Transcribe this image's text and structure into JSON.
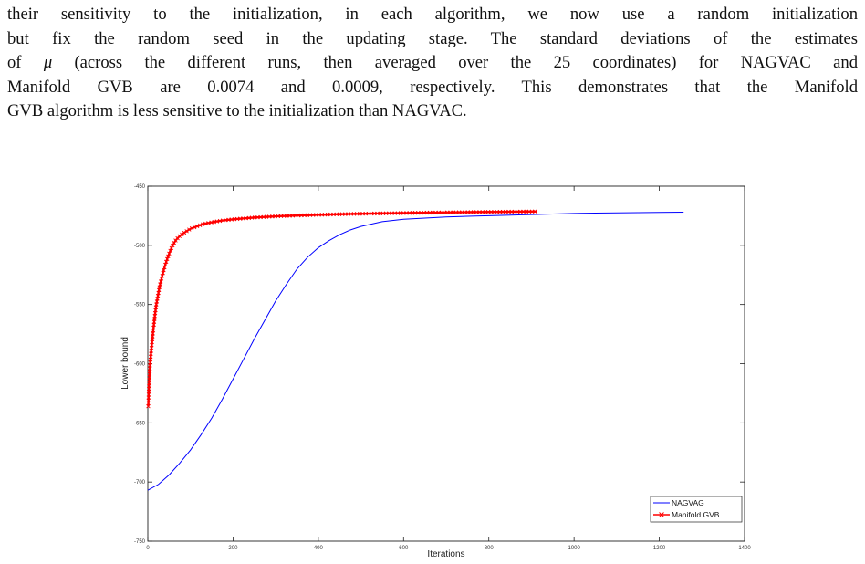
{
  "paragraph": {
    "line1": "their sensitivity to the initialization, in each algorithm, we now use a random initialization",
    "line2": "but fix the random seed in the updating stage. The standard deviations of the estimates",
    "line3_pre": "of ",
    "line3_mu": "μ",
    "line3_post": " (across the different runs, then averaged over the 25 coordinates) for NAGVAC and",
    "line4": "Manifold GVB are 0.0074 and 0.0009, respectively. This demonstrates that the Manifold",
    "line5": "GVB algorithm is less sensitive to the initialization than NAGVAC."
  },
  "chart_data": {
    "type": "line",
    "xlabel": "Iterations",
    "ylabel": "Lower bound",
    "xlim": [
      0,
      1400
    ],
    "ylim": [
      -750,
      -450
    ],
    "xticks": [
      "0",
      "200",
      "400",
      "600",
      "800",
      "1000",
      "1200",
      "1400"
    ],
    "yticks": [
      "-450",
      "-500",
      "-550",
      "-600",
      "-650",
      "-700",
      "-750"
    ],
    "grid": false,
    "legend_position": "bottom-right",
    "series": [
      {
        "name": "NAGVAG",
        "color": "#0000ff",
        "marker": "none",
        "x": [
          0,
          25,
          50,
          75,
          100,
          125,
          150,
          175,
          200,
          225,
          250,
          275,
          300,
          325,
          350,
          375,
          400,
          425,
          450,
          475,
          500,
          550,
          600,
          650,
          700,
          750,
          800,
          850,
          900,
          950,
          1000,
          1050,
          1100,
          1150,
          1200,
          1257
        ],
        "y": [
          -707,
          -702,
          -694,
          -684,
          -673,
          -660,
          -646,
          -630,
          -613,
          -596,
          -579,
          -563,
          -547,
          -533,
          -520,
          -510,
          -502,
          -496,
          -491,
          -487,
          -484,
          -480,
          -478,
          -477,
          -476,
          -475.5,
          -475,
          -474.5,
          -474,
          -473.5,
          -473,
          -472.8,
          -472.6,
          -472.4,
          -472.2,
          -472
        ]
      },
      {
        "name": "Manifold GVB",
        "color": "#ff0000",
        "marker": "x",
        "x": [
          1,
          3,
          5,
          8,
          11,
          14,
          17,
          20,
          24,
          28,
          33,
          38,
          44,
          50,
          57,
          65,
          75,
          87,
          100,
          115,
          130,
          150,
          175,
          200,
          250,
          300,
          350,
          400,
          450,
          500,
          550,
          600,
          650,
          700,
          750,
          800,
          850,
          912
        ],
        "y": [
          -636,
          -617,
          -602,
          -589,
          -578,
          -568,
          -558,
          -550,
          -542,
          -534,
          -527,
          -520,
          -513,
          -507,
          -501,
          -496,
          -492,
          -489,
          -486,
          -484,
          -482,
          -480.5,
          -479,
          -478,
          -476.5,
          -475.5,
          -474.8,
          -474.2,
          -473.7,
          -473.3,
          -473,
          -472.7,
          -472.4,
          -472.2,
          -472,
          -471.8,
          -471.6,
          -471.4
        ]
      }
    ]
  }
}
